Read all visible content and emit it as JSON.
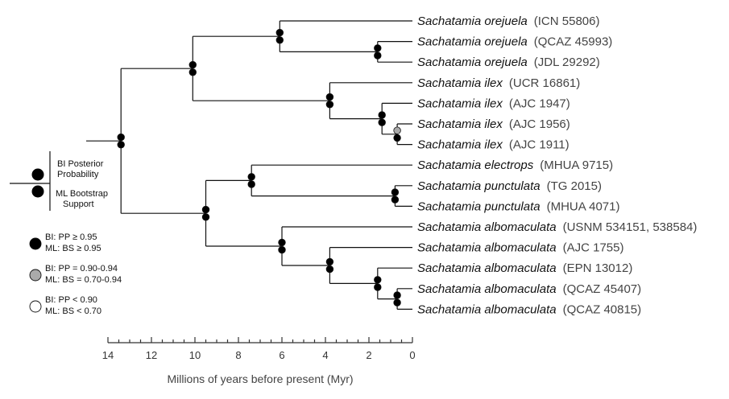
{
  "figure": {
    "taxa": [
      {
        "genus": "Sachatamia",
        "species": "orejuela",
        "voucher": "(ICN 55806)"
      },
      {
        "genus": "Sachatamia",
        "species": "orejuela",
        "voucher": "(QCAZ 45993)"
      },
      {
        "genus": "Sachatamia",
        "species": "orejuela",
        "voucher": "(JDL 29292)"
      },
      {
        "genus": "Sachatamia",
        "species": "ilex",
        "voucher": "(UCR 16861)"
      },
      {
        "genus": "Sachatamia",
        "species": "ilex",
        "voucher": "(AJC 1947)"
      },
      {
        "genus": "Sachatamia",
        "species": "ilex",
        "voucher": "(AJC 1956)"
      },
      {
        "genus": "Sachatamia",
        "species": "ilex",
        "voucher": "(AJC 1911)"
      },
      {
        "genus": "Sachatamia",
        "species": "electrops",
        "voucher": "(MHUA 9715)"
      },
      {
        "genus": "Sachatamia",
        "species": "punctulata",
        "voucher": "(TG 2015)"
      },
      {
        "genus": "Sachatamia",
        "species": "punctulata",
        "voucher": "(MHUA 4071)"
      },
      {
        "genus": "Sachatamia",
        "species": "albomaculata",
        "voucher": "(USNM 534151, 538584)"
      },
      {
        "genus": "Sachatamia",
        "species": "albomaculata",
        "voucher": "(AJC 1755)"
      },
      {
        "genus": "Sachatamia",
        "species": "albomaculata",
        "voucher": "(EPN 13012)"
      },
      {
        "genus": "Sachatamia",
        "species": "albomaculata",
        "voucher": "(QCAZ 45407)"
      },
      {
        "genus": "Sachatamia",
        "species": "albomaculata",
        "voucher": "(QCAZ 40815)"
      }
    ],
    "nodes": [
      {
        "id": "root",
        "age": 13.4,
        "children": [
          "n_orejuela_ilex",
          "n_electrops_albo"
        ],
        "pp": "high",
        "bs": "high"
      },
      {
        "id": "n_orejuela_ilex",
        "age": 10.1,
        "children": [
          "n_orejuela",
          "n_ilex"
        ],
        "pp": "high",
        "bs": "high"
      },
      {
        "id": "n_orejuela",
        "age": 6.1,
        "children": [
          "t0",
          "n_orejuela2"
        ],
        "pp": "high",
        "bs": "high"
      },
      {
        "id": "n_orejuela2",
        "age": 1.6,
        "children": [
          "t1",
          "t2"
        ],
        "pp": "high",
        "bs": "high"
      },
      {
        "id": "n_ilex",
        "age": 3.8,
        "children": [
          "t3",
          "n_ilex2"
        ],
        "pp": "high",
        "bs": "high"
      },
      {
        "id": "n_ilex2",
        "age": 1.4,
        "children": [
          "t4",
          "n_ilex3"
        ],
        "pp": "high",
        "bs": "high"
      },
      {
        "id": "n_ilex3",
        "age": 0.7,
        "children": [
          "t5",
          "t6"
        ],
        "pp": "mid",
        "bs": "high"
      },
      {
        "id": "n_electrops_albo",
        "age": 9.5,
        "children": [
          "n_electrops",
          "n_albo"
        ],
        "pp": "high",
        "bs": "high"
      },
      {
        "id": "n_electrops",
        "age": 7.4,
        "children": [
          "t7",
          "n_punct"
        ],
        "pp": "high",
        "bs": "high"
      },
      {
        "id": "n_punct",
        "age": 0.8,
        "children": [
          "t8",
          "t9"
        ],
        "pp": "high",
        "bs": "high"
      },
      {
        "id": "n_albo",
        "age": 6.0,
        "children": [
          "t10",
          "n_albo2"
        ],
        "pp": "high",
        "bs": "high"
      },
      {
        "id": "n_albo2",
        "age": 3.8,
        "children": [
          "t11",
          "n_albo3"
        ],
        "pp": "high",
        "bs": "high"
      },
      {
        "id": "n_albo3",
        "age": 1.6,
        "children": [
          "t12",
          "n_albo4"
        ],
        "pp": "high",
        "bs": "high"
      },
      {
        "id": "n_albo4",
        "age": 0.7,
        "children": [
          "t13",
          "t14"
        ],
        "pp": "high",
        "bs": "high"
      }
    ],
    "root_stem_age": 15.0,
    "axis": {
      "min": 0,
      "max": 14,
      "ticks": [
        14,
        12,
        10,
        8,
        6,
        4,
        2,
        0
      ],
      "tick_labels": [
        "14",
        "12",
        "10",
        "8",
        "6",
        "4",
        "2",
        "0"
      ],
      "title": "Millions of years before present (Myr)"
    },
    "legend": {
      "key_top": "BI Posterior Probability",
      "key_bottom": "ML Bootstrap Support",
      "items": [
        {
          "level": "high",
          "fill": "#000000",
          "line1": "BI: PP ≥ 0.95",
          "line2": "ML: BS ≥ 0.95"
        },
        {
          "level": "mid",
          "fill": "#aaaaaa",
          "line1": "BI: PP = 0.90-0.94",
          "line2": "ML: BS = 0.70-0.94"
        },
        {
          "level": "low",
          "fill": "#ffffff",
          "line1": "BI: PP < 0.90",
          "line2": "ML: BS < 0.70"
        }
      ]
    }
  }
}
